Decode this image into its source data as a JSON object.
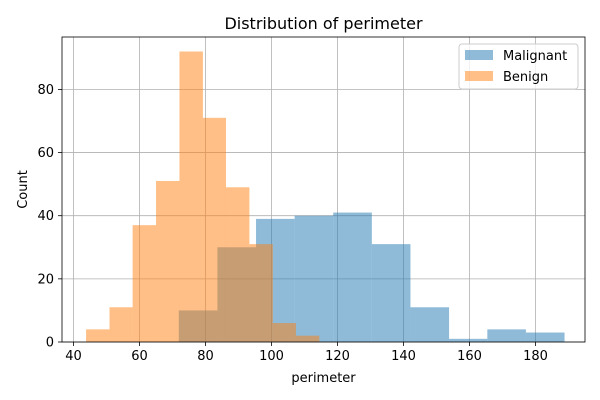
{
  "chart_data": {
    "type": "histogram",
    "title": "Distribution of perimeter",
    "xlabel": "perimeter",
    "ylabel": "Count",
    "xlim": [
      36.5,
      195
    ],
    "ylim": [
      0,
      96.6
    ],
    "xticks": [
      40,
      60,
      80,
      100,
      120,
      140,
      160,
      180
    ],
    "yticks": [
      0,
      20,
      40,
      60,
      80
    ],
    "grid": true,
    "legend_position": "top-right",
    "series": [
      {
        "name": "Malignant",
        "color": "#1f77b4",
        "opacity": 0.5,
        "bin_edges": [
          71.9,
          83.6,
          95.3,
          107.0,
          118.7,
          130.4,
          142.1,
          153.8,
          165.4,
          177.1,
          188.8
        ],
        "counts": [
          10,
          30,
          39,
          40,
          41,
          31,
          11,
          1,
          4,
          3
        ]
      },
      {
        "name": "Benign",
        "color": "#ff7f0e",
        "opacity": 0.5,
        "bin_edges": [
          43.8,
          50.9,
          57.9,
          65.0,
          72.1,
          79.2,
          86.2,
          93.3,
          100.4,
          107.4,
          114.5
        ],
        "counts": [
          4,
          11,
          37,
          51,
          92,
          71,
          49,
          31,
          6,
          2
        ]
      }
    ]
  }
}
